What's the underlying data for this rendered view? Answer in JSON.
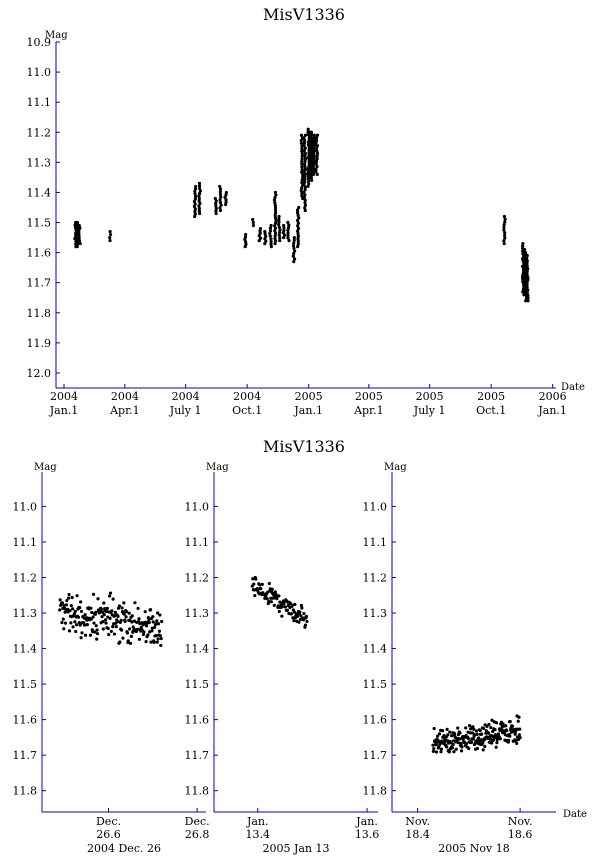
{
  "top": {
    "title": "MisV1336",
    "xlabel": "Date",
    "ylabel": "Mag",
    "yticks": [
      "10.9",
      "11.0",
      "11.1",
      "11.2",
      "11.3",
      "11.4",
      "11.5",
      "11.6",
      "11.7",
      "11.8",
      "11.9",
      "12.0"
    ],
    "xticks": [
      {
        "year": "2004",
        "date": "Jan.1"
      },
      {
        "year": "2004",
        "date": "Apr.1"
      },
      {
        "year": "2004",
        "date": "July 1"
      },
      {
        "year": "2004",
        "date": "Oct.1"
      },
      {
        "year": "2005",
        "date": "Jan.1"
      },
      {
        "year": "2005",
        "date": "Apr.1"
      },
      {
        "year": "2005",
        "date": "July 1"
      },
      {
        "year": "2005",
        "date": "Oct.1"
      },
      {
        "year": "2006",
        "date": "Jan.1"
      }
    ]
  },
  "bottom": {
    "title": "MisV1336",
    "ylabel": "Mag",
    "xlabel": "Date",
    "yticks": [
      "11.0",
      "11.1",
      "11.2",
      "11.3",
      "11.4",
      "11.5",
      "11.6",
      "11.7",
      "11.8"
    ],
    "panels": [
      {
        "caption": "2004 Dec. 26",
        "xticks": [
          {
            "l1": "Dec.",
            "l2": "26.6"
          },
          {
            "l1": "Dec.",
            "l2": "26.8"
          }
        ]
      },
      {
        "caption": "2005 Jan 13",
        "xticks": [
          {
            "l1": "Jan.",
            "l2": "13.4"
          },
          {
            "l1": "Jan.",
            "l2": "13.6"
          }
        ]
      },
      {
        "caption": "2005 Nov 18",
        "xticks": [
          {
            "l1": "Nov.",
            "l2": "18.4"
          },
          {
            "l1": "Nov.",
            "l2": "18.6"
          }
        ]
      }
    ]
  },
  "colors": {
    "axis": "#0000cc",
    "points": "#000000"
  },
  "chart_data": [
    {
      "type": "scatter",
      "title": "MisV1336",
      "xlabel": "Date",
      "ylabel": "Mag",
      "xlim": [
        "2003-12-20",
        "2006-01-06"
      ],
      "ylim": [
        12.05,
        10.9
      ],
      "y_inverted": true,
      "clusters": [
        {
          "x": "2004-01-18",
          "y_min": 11.5,
          "y_max": 11.58
        },
        {
          "x": "2004-01-20",
          "y_min": 11.5,
          "y_max": 11.58
        },
        {
          "x": "2004-01-22",
          "y_min": 11.5,
          "y_max": 11.57
        },
        {
          "x": "2004-01-24",
          "y_min": 11.51,
          "y_max": 11.57
        },
        {
          "x": "2004-03-10",
          "y_min": 11.53,
          "y_max": 11.56
        },
        {
          "x": "2004-07-15",
          "y_min": 11.38,
          "y_max": 11.48
        },
        {
          "x": "2004-07-22",
          "y_min": 11.37,
          "y_max": 11.47
        },
        {
          "x": "2004-08-15",
          "y_min": 11.42,
          "y_max": 11.47
        },
        {
          "x": "2004-08-22",
          "y_min": 11.38,
          "y_max": 11.46
        },
        {
          "x": "2004-08-30",
          "y_min": 11.4,
          "y_max": 11.44
        },
        {
          "x": "2004-09-28",
          "y_min": 11.54,
          "y_max": 11.58
        },
        {
          "x": "2004-10-10",
          "y_min": 11.49,
          "y_max": 11.51
        },
        {
          "x": "2004-10-20",
          "y_min": 11.52,
          "y_max": 11.56
        },
        {
          "x": "2004-10-28",
          "y_min": 11.53,
          "y_max": 11.57
        },
        {
          "x": "2004-11-05",
          "y_min": 11.51,
          "y_max": 11.58
        },
        {
          "x": "2004-11-12",
          "y_min": 11.4,
          "y_max": 11.57
        },
        {
          "x": "2004-11-18",
          "y_min": 11.48,
          "y_max": 11.56
        },
        {
          "x": "2004-11-25",
          "y_min": 11.51,
          "y_max": 11.55
        },
        {
          "x": "2004-12-02",
          "y_min": 11.5,
          "y_max": 11.56
        },
        {
          "x": "2004-12-10",
          "y_min": 11.55,
          "y_max": 11.63
        },
        {
          "x": "2004-12-16",
          "y_min": 11.45,
          "y_max": 11.58
        },
        {
          "x": "2004-12-22",
          "y_min": 11.21,
          "y_max": 11.42
        },
        {
          "x": "2004-12-26",
          "y_min": 11.21,
          "y_max": 11.46
        },
        {
          "x": "2005-01-01",
          "y_min": 11.19,
          "y_max": 11.38
        },
        {
          "x": "2005-01-03",
          "y_min": 11.2,
          "y_max": 11.35
        },
        {
          "x": "2005-01-05",
          "y_min": 11.2,
          "y_max": 11.36
        },
        {
          "x": "2005-01-07",
          "y_min": 11.22,
          "y_max": 11.34
        },
        {
          "x": "2005-01-09",
          "y_min": 11.21,
          "y_max": 11.34
        },
        {
          "x": "2005-01-13",
          "y_min": 11.21,
          "y_max": 11.34
        },
        {
          "x": "2005-10-21",
          "y_min": 11.48,
          "y_max": 11.57
        },
        {
          "x": "2005-11-18",
          "y_min": 11.57,
          "y_max": 11.73
        },
        {
          "x": "2005-11-20",
          "y_min": 11.59,
          "y_max": 11.74
        },
        {
          "x": "2005-11-22",
          "y_min": 11.6,
          "y_max": 11.76
        },
        {
          "x": "2005-11-24",
          "y_min": 11.61,
          "y_max": 11.76
        }
      ]
    },
    {
      "type": "scatter",
      "caption": "2004 Dec. 26",
      "ylabel": "Mag",
      "xlim": [
        26.45,
        26.82
      ],
      "ylim": [
        11.86,
        10.92
      ],
      "y_inverted": true,
      "x_range_observed": [
        26.49,
        26.72
      ],
      "y_range_observed": [
        11.21,
        11.46
      ],
      "y_center": 11.32
    },
    {
      "type": "scatter",
      "caption": "2005 Jan 13",
      "ylabel": "Mag",
      "xlim": [
        13.32,
        13.62
      ],
      "ylim": [
        11.86,
        10.92
      ],
      "y_inverted": true,
      "x_range_observed": [
        13.39,
        13.49
      ],
      "y_range_observed": [
        11.2,
        11.34
      ],
      "y_center": 11.27
    },
    {
      "type": "scatter",
      "caption": "2005 Nov 18",
      "xlabel": "Date",
      "ylabel": "Mag",
      "xlim": [
        18.35,
        18.67
      ],
      "ylim": [
        11.86,
        10.92
      ],
      "y_inverted": true,
      "x_range_observed": [
        18.43,
        18.6
      ],
      "y_range_observed": [
        11.57,
        11.73
      ],
      "y_center": 11.65
    }
  ]
}
